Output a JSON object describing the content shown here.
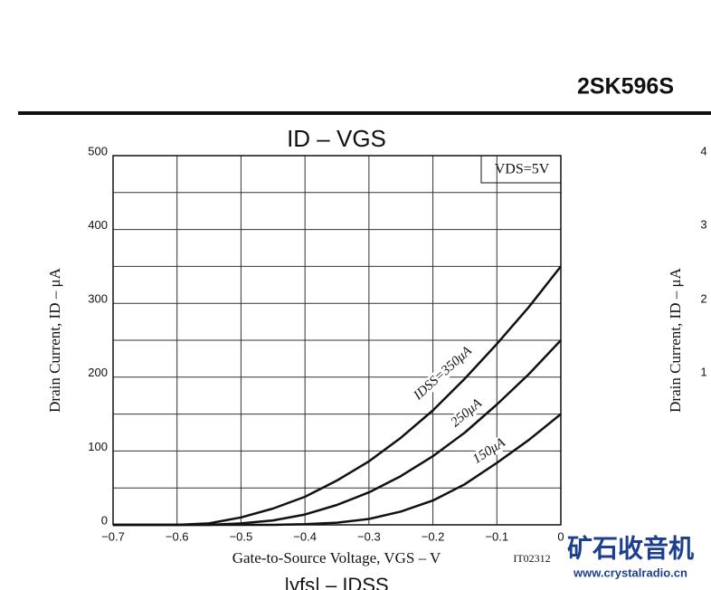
{
  "header": {
    "part_number": "2SK596S"
  },
  "chart_data": {
    "type": "line",
    "title": "ID – VGS",
    "xlabel": "Gate-to-Source Voltage, VGS – V",
    "ylabel": "Drain Current, ID – μA",
    "annotation": "VDS=5V",
    "figure_id": "IT02312",
    "x": [
      -0.7,
      -0.65,
      -0.6,
      -0.55,
      -0.5,
      -0.45,
      -0.4,
      -0.35,
      -0.3,
      -0.25,
      -0.2,
      -0.15,
      -0.1,
      -0.05,
      0
    ],
    "series": [
      {
        "name": "IDSS=350μA",
        "color": "#111111",
        "values": [
          0,
          0,
          0,
          2,
          10,
          22,
          38,
          60,
          86,
          118,
          155,
          198,
          245,
          295,
          350
        ]
      },
      {
        "name": "250μA",
        "color": "#111111",
        "values": [
          0,
          0,
          0,
          0,
          2,
          6,
          14,
          27,
          44,
          66,
          93,
          125,
          163,
          204,
          250
        ]
      },
      {
        "name": "150μA",
        "color": "#111111",
        "values": [
          0,
          0,
          0,
          0,
          0,
          0,
          1,
          3,
          8,
          18,
          33,
          55,
          84,
          115,
          150
        ]
      }
    ],
    "xlim": [
      -0.7,
      0
    ],
    "ylim": [
      0,
      500
    ],
    "xticks": [
      {
        "value": -0.7,
        "label": "−0.7"
      },
      {
        "value": -0.6,
        "label": "−0.6"
      },
      {
        "value": -0.5,
        "label": "−0.5"
      },
      {
        "value": -0.4,
        "label": "−0.4"
      },
      {
        "value": -0.3,
        "label": "−0.3"
      },
      {
        "value": -0.2,
        "label": "−0.2"
      },
      {
        "value": -0.1,
        "label": "−0.1"
      },
      0
    ],
    "yticks": [
      0,
      100,
      200,
      300,
      400,
      500
    ],
    "minor_yticks": [
      50,
      150,
      250,
      350,
      450
    ],
    "grid": true
  },
  "neighbor_panels": {
    "right_ylabel": "Drain Current, ID – μA",
    "right_tick_labels": [
      "4",
      "3",
      "2",
      "1"
    ],
    "bottom_title": "|yfs| – IDSS"
  },
  "watermark": {
    "chinese": "矿石收音机",
    "url": "www.crystalradio.cn"
  }
}
